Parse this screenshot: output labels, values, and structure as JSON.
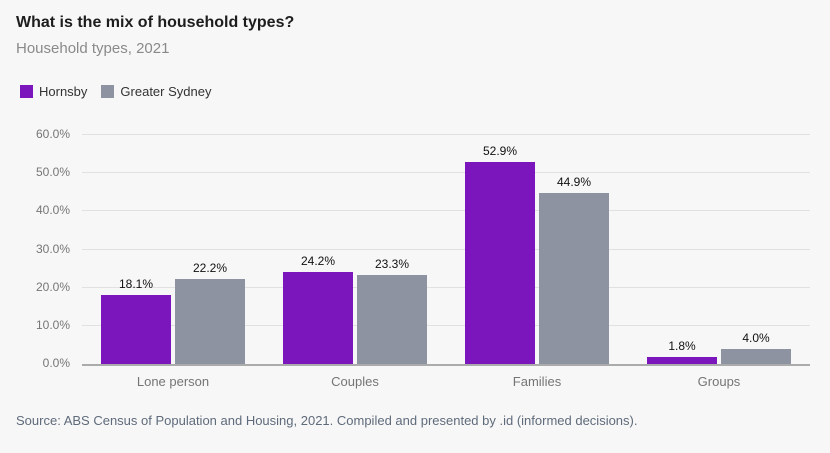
{
  "header": {
    "title": "What is the mix of household types?",
    "subtitle": "Household types, 2021"
  },
  "legend": [
    {
      "label": "Hornsby",
      "color": "#7b16bc"
    },
    {
      "label": "Greater Sydney",
      "color": "#8e93a2"
    }
  ],
  "chart_data": {
    "type": "bar",
    "title": "What is the mix of household types?",
    "subtitle": "Household types, 2021",
    "categories": [
      "Lone person",
      "Couples",
      "Families",
      "Groups"
    ],
    "series": [
      {
        "name": "Hornsby",
        "color": "#7b16bc",
        "values": [
          18.1,
          24.2,
          52.9,
          1.8
        ]
      },
      {
        "name": "Greater Sydney",
        "color": "#8e93a2",
        "values": [
          22.2,
          23.3,
          44.9,
          4.0
        ]
      }
    ],
    "value_labels": [
      [
        "18.1%",
        "24.2%",
        "52.9%",
        "1.8%"
      ],
      [
        "22.2%",
        "23.3%",
        "44.9%",
        "4.0%"
      ]
    ],
    "ylim": [
      0,
      60
    ],
    "yticks": [
      "0.0%",
      "10.0%",
      "20.0%",
      "30.0%",
      "40.0%",
      "50.0%",
      "60.0%"
    ],
    "grid": true,
    "legend_position": "top-left"
  },
  "footer": {
    "source": "Source: ABS Census of Population and Housing, 2021. Compiled and presented by .id (informed decisions)."
  },
  "colors": {
    "background": "#f7f7f8",
    "gridline": "#e1e1e2",
    "axis_line": "#ababab",
    "title_text": "#1d1d1d",
    "subtitle_text": "#8a8a8a",
    "tick_text": "#767676",
    "category_text": "#757575",
    "value_label_text": "#111111",
    "source_text": "#5f6b7a"
  }
}
